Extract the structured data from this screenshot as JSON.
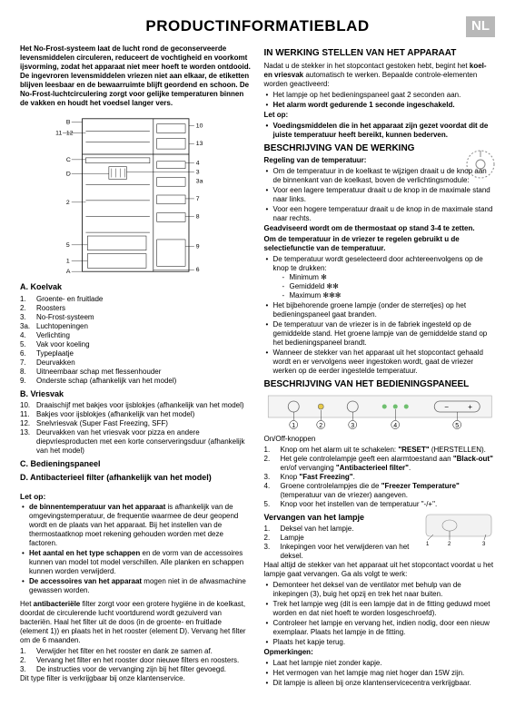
{
  "title": "PRODUCTINFORMATIEBLAD",
  "lang": "NL",
  "intro": "Het No-Frost-systeem laat de lucht rond de geconserveerde levensmiddelen circuleren, reduceert de vochtigheid en voorkomt ijsvorming, zodat het apparaat niet meer hoeft te worden ontdooid. De ingevroren levensmiddelen vriezen niet aan elkaar, de etiketten blijven leesbaar en de bewaarruimte blijft geordend en schoon. De No-Frost-luchtcirculering zorgt voor gelijke temperaturen binnen de vakken en houdt het voedsel langer vers.",
  "diagram": {
    "labels": [
      "A",
      "B",
      "C",
      "D",
      "1",
      "2",
      "3",
      "3a",
      "4",
      "5",
      "6",
      "7",
      "8",
      "9",
      "10",
      "11",
      "12",
      "13"
    ]
  },
  "sectionA": {
    "heading": "A. Koelvak",
    "items": [
      {
        "n": "1.",
        "t": "Groente- en fruitlade"
      },
      {
        "n": "2.",
        "t": "Roosters"
      },
      {
        "n": "3.",
        "t": "No-Frost-systeem"
      },
      {
        "n": "3a.",
        "t": "Luchtopeningen"
      },
      {
        "n": "4.",
        "t": "Verlichting"
      },
      {
        "n": "5.",
        "t": "Vak voor koeling"
      },
      {
        "n": "6.",
        "t": "Typeplaatje"
      },
      {
        "n": "7.",
        "t": "Deurvakken"
      },
      {
        "n": "8.",
        "t": "Uitneembaar schap met flessenhouder"
      },
      {
        "n": "9.",
        "t": "Onderste schap (afhankelijk van het model)"
      }
    ]
  },
  "sectionB": {
    "heading": "B. Vriesvak",
    "items": [
      {
        "n": "10.",
        "t": "Draaischijf met bakjes voor ijsblokjes (afhankelijk van het model)"
      },
      {
        "n": "11.",
        "t": "Bakjes voor ijsblokjes (afhankelijk van het model)"
      },
      {
        "n": "12.",
        "t": "Snelvriesvak (Super Fast Freezing, SFF)"
      },
      {
        "n": "13.",
        "t": "Deurvakken van het vriesvak voor pizza en andere diepvriesproducten met een korte conserveringsduur (afhankelijk van het model)"
      }
    ]
  },
  "sectionC": "C. Bedieningspaneel",
  "sectionD": "D. Antibacterieel filter (afhankelijk van het model)",
  "letop": {
    "heading": "Let op:",
    "items": [
      "de binnentemperatuur van het apparaat is afhankelijk van de omgevingstemperatuur, de frequentie waarmee de deur geopend wordt en de plaats van het apparaat. Bij het instellen van de thermostaatknop moet rekening gehouden worden met deze factoren.",
      "Het aantal en het type schappen en de vorm van de accessoires kunnen van model tot model verschillen. Alle planken en schappen kunnen worden verwijderd.",
      "De accessoires van het apparaat mogen niet in de afwasmachine gewassen worden."
    ],
    "bold_prefixes": [
      "de binnentemperatuur van het apparaat",
      "Het aantal en het type schappen",
      "De accessoires van het apparaat"
    ]
  },
  "antibac_para": "Het antibacteriële filter zorgt voor een grotere hygiëne in de koelkast, doordat de circulerende lucht voortdurend wordt gezuiverd van bacteriën. Haal het filter uit de doos (in de groente- en fruitlade (element 1)) en plaats het in het rooster (element D). Vervang het filter om de 6 maanden.",
  "antibac_steps": [
    {
      "n": "1.",
      "t": "Verwijder het filter en het rooster en dank ze samen af."
    },
    {
      "n": "2.",
      "t": "Vervang het filter en het rooster door nieuwe filters en roosters."
    },
    {
      "n": "3.",
      "t": "De instructies voor de vervanging zijn bij het filter gevoegd."
    }
  ],
  "antibac_tail": "Dit type filter is verkrijgbaar bij onze klantenservice.",
  "rcol": {
    "inwerking": {
      "heading": "IN WERKING STELLEN VAN HET APPARAAT",
      "p1": "Nadat u de stekker in het stopcontact gestoken hebt, begint het koel- en vriesvak automatisch te werken. Bepaalde controle-elementen worden geactiveerd:",
      "bullets": [
        "Het lampje op het bedieningspaneel gaat 2 seconden aan.",
        "Het alarm wordt gedurende 1 seconde ingeschakeld."
      ],
      "letop_h": "Let op:",
      "letop_b": "Voedingsmiddelen die in het apparaat zijn gezet voordat dit de juiste temperatuur heeft bereikt, kunnen bederven."
    },
    "beschrijving": {
      "heading": "BESCHRIJVING VAN DE WERKING",
      "reg_h": "Regeling van de temperatuur:",
      "reg_b": [
        "Om de temperatuur in de koelkast te wijzigen draait u de knop aan de binnenkant van de koelkast, boven de verlichtingsmodule:",
        "Voor een lagere temperatuur draait u de knop in de maximale stand naar links.",
        "Voor een hogere temperatuur draait u de knop in de maximale stand naar rechts."
      ],
      "advice": "Geadviseerd wordt om de thermostaat op stand 3-4 te zetten.",
      "vries_h": "Om de temperatuur in de vriezer te regelen gebruikt u de selectiefunctie van de temperatuur.",
      "vries_b1": "De temperatuur wordt geselecteerd door achtereenvolgens op de knop te drukken:",
      "levels": [
        "Minimum  ✻",
        "Gemiddeld  ✻✻",
        "Maximum  ✻✻✻"
      ],
      "vries_tail": [
        "Het bijbehorende groene lampje (onder de sterretjes) op het bedieningspaneel gaat branden.",
        "De temperatuur van de vriezer is in de fabriek ingesteld op de gemiddelde stand. Het groene lampje van de gemiddelde stand op het bedieningspaneel brandt.",
        "Wanneer de stekker van het apparaat uit het stopcontact gehaald wordt en er vervolgens weer ingestoken wordt, gaat de vriezer werken op de eerder ingestelde temperatuur."
      ]
    },
    "panel": {
      "heading": "BESCHRIJVING VAN HET BEDIENINGSPANEEL",
      "onoff": "On/Off-knoppen",
      "items": [
        {
          "n": "1.",
          "t": "Knop om het alarm uit te schakelen: \"RESET\" (HERSTELLEN)."
        },
        {
          "n": "2.",
          "t": "Het gele controlelampje geeft een alarmtoestand aan \"Black-out\" en/of vervanging \"Antibacterieel filter\"."
        },
        {
          "n": "3.",
          "t": "Knop \"Fast Freezing\"."
        },
        {
          "n": "4.",
          "t": "Groene controlelampjes die de \"Freezer Temperature\" (temperatuur van de vriezer) aangeven."
        },
        {
          "n": "5.",
          "t": "Knop voor het instellen van de temperatuur \"-/+\"."
        }
      ],
      "markers": [
        "1",
        "2",
        "3",
        "4",
        "5"
      ]
    },
    "lamp": {
      "heading": "Vervangen van het lampje",
      "items": [
        {
          "n": "1.",
          "t": "Deksel van het lampje."
        },
        {
          "n": "2.",
          "t": "Lampje"
        },
        {
          "n": "3.",
          "t": "Inkepingen voor het verwijderen van het deksel."
        }
      ],
      "p1": "Haal altijd de stekker van het apparaat uit het stopcontact voordat u het lampje gaat vervangen. Ga als volgt te werk:",
      "steps": [
        "Demonteer het deksel van de ventilator met behulp van de inkepingen (3), buig het opzij en trek het naar buiten.",
        "Trek het lampje weg (dit is een lampje dat in de fitting geduwd moet worden en dat niet hoeft te worden losgeschroefd).",
        "Controleer het lampje en vervang het, indien nodig, door een nieuw exemplaar. Plaats het lampje in de fitting.",
        "Plaats het kapje terug."
      ],
      "opm_h": "Opmerkingen:",
      "opm": [
        "Laat het lampje niet zonder kapje.",
        "Het vermogen van het lampje mag niet hoger dan 15W zijn.",
        "Dit lampje is alleen bij onze klantenservicecentra verkrijgbaar."
      ]
    },
    "knob_svg": true
  }
}
